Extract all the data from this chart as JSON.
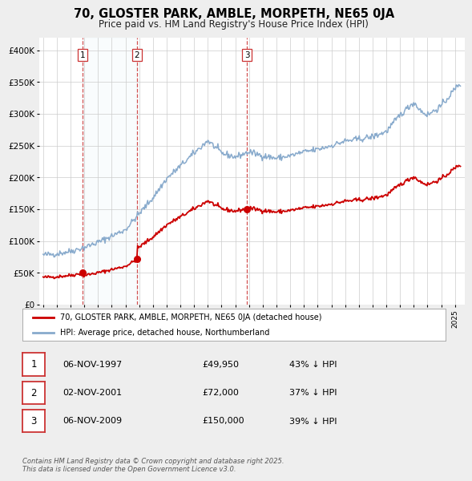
{
  "title": "70, GLOSTER PARK, AMBLE, MORPETH, NE65 0JA",
  "subtitle": "Price paid vs. HM Land Registry's House Price Index (HPI)",
  "title_fontsize": 10.5,
  "subtitle_fontsize": 8.5,
  "background_color": "#eeeeee",
  "plot_bg_color": "#ffffff",
  "red_line_color": "#cc0000",
  "blue_line_color": "#88aacc",
  "sale_marker_color": "#cc0000",
  "vline_color": "#cc3333",
  "sale_events": [
    {
      "label": "1",
      "date_num": 1997.85,
      "price": 49950
    },
    {
      "label": "2",
      "date_num": 2001.84,
      "price": 72000
    },
    {
      "label": "3",
      "date_num": 2009.85,
      "price": 150000
    }
  ],
  "legend_entries": [
    "70, GLOSTER PARK, AMBLE, MORPETH, NE65 0JA (detached house)",
    "HPI: Average price, detached house, Northumberland"
  ],
  "table_rows": [
    [
      "1",
      "06-NOV-1997",
      "£49,950",
      "43% ↓ HPI"
    ],
    [
      "2",
      "02-NOV-2001",
      "£72,000",
      "37% ↓ HPI"
    ],
    [
      "3",
      "06-NOV-2009",
      "£150,000",
      "39% ↓ HPI"
    ]
  ],
  "footer_text": "Contains HM Land Registry data © Crown copyright and database right 2025.\nThis data is licensed under the Open Government Licence v3.0.",
  "ylim": [
    0,
    420000
  ],
  "xlim_start": 1994.7,
  "xlim_end": 2025.7,
  "ytick_vals": [
    0,
    50000,
    100000,
    150000,
    200000,
    250000,
    300000,
    350000,
    400000
  ],
  "ytick_labels": [
    "£0",
    "£50K",
    "£100K",
    "£150K",
    "£200K",
    "£250K",
    "£300K",
    "£350K",
    "£400K"
  ]
}
